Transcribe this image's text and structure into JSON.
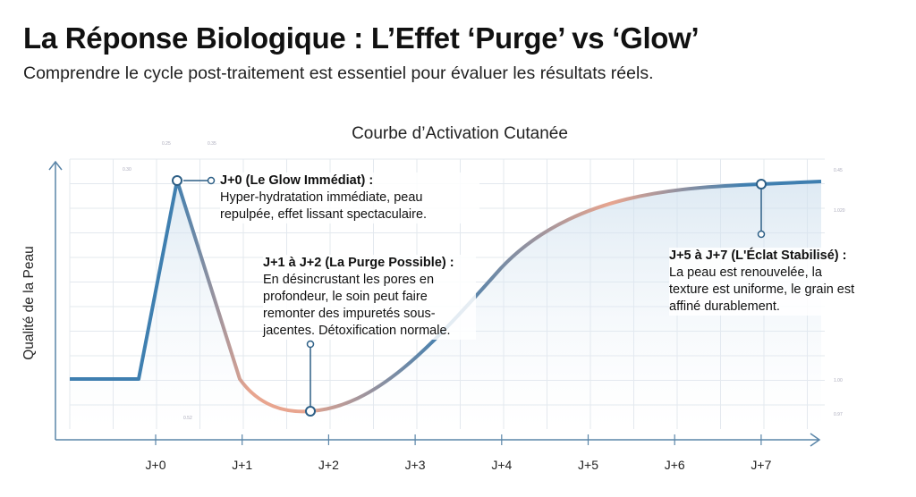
{
  "header": {
    "title": "La Réponse Biologique : L’Effet ‘Purge’ vs ‘Glow’",
    "subtitle": "Comprendre le cycle post-traitement est essentiel pour évaluer les résultats réels."
  },
  "chart_data": {
    "type": "line",
    "title": "Courbe d’Activation Cutanée",
    "ylabel": "Qualité de la Peau",
    "xlabel": "",
    "categories": [
      "J+0",
      "J+1",
      "J+2",
      "J+3",
      "J+4",
      "J+5",
      "J+6",
      "J+7"
    ],
    "annotations": [
      {
        "title": "J+0 (Le Glow Immédiat) :",
        "text": "Hyper-hydratation immédiate, peau repulpée, effet lissant spectaculaire."
      },
      {
        "title": "J+1 à J+2 (La Purge Possible) :",
        "text": "En désincrustant les pores en profondeur, le soin peut faire remonter des impuretés sous-jacentes. Détoxification normale."
      },
      {
        "title": "J+5 à J+7 (L'Éclat Stabilisé) :",
        "text": "La peau est renouvelée, la texture est uniforme, le grain est affiné durablement."
      }
    ],
    "dimension_labels": [
      "0.25",
      "0.30",
      "0.35",
      "0.45",
      "1.020",
      "1.00",
      "0.97",
      "0.52"
    ],
    "colors": {
      "blue": "#3f7fb0",
      "salmon": "#e8a58f",
      "axis": "#5a85a8"
    }
  }
}
